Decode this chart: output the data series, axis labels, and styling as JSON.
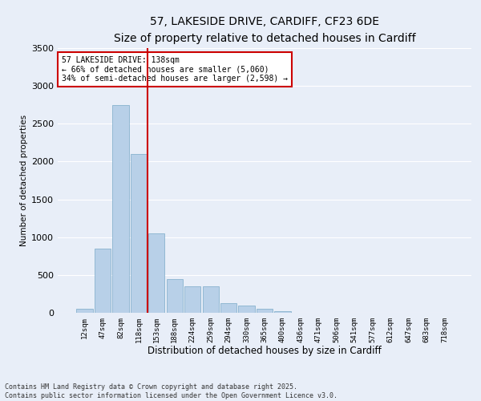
{
  "title_line1": "57, LAKESIDE DRIVE, CARDIFF, CF23 6DE",
  "title_line2": "Size of property relative to detached houses in Cardiff",
  "xlabel": "Distribution of detached houses by size in Cardiff",
  "ylabel": "Number of detached properties",
  "categories": [
    "12sqm",
    "47sqm",
    "82sqm",
    "118sqm",
    "153sqm",
    "188sqm",
    "224sqm",
    "259sqm",
    "294sqm",
    "330sqm",
    "365sqm",
    "400sqm",
    "436sqm",
    "471sqm",
    "506sqm",
    "541sqm",
    "577sqm",
    "612sqm",
    "647sqm",
    "683sqm",
    "718sqm"
  ],
  "values": [
    50,
    850,
    2750,
    2100,
    1050,
    450,
    350,
    350,
    130,
    100,
    50,
    20,
    5,
    2,
    0,
    0,
    0,
    0,
    0,
    0,
    0
  ],
  "bar_color": "#b8d0e8",
  "bar_edge_color": "#7aaac8",
  "vline_color": "#cc0000",
  "vline_pos": 3.5,
  "annotation_text": "57 LAKESIDE DRIVE: 138sqm\n← 66% of detached houses are smaller (5,060)\n34% of semi-detached houses are larger (2,598) →",
  "annotation_box_color": "#ffffff",
  "annotation_box_edge": "#cc0000",
  "ylim": [
    0,
    3500
  ],
  "yticks": [
    0,
    500,
    1000,
    1500,
    2000,
    2500,
    3000,
    3500
  ],
  "footer_line1": "Contains HM Land Registry data © Crown copyright and database right 2025.",
  "footer_line2": "Contains public sector information licensed under the Open Government Licence v3.0.",
  "bg_color": "#e8eef8",
  "grid_color": "#ffffff",
  "title1_fontsize": 10,
  "title2_fontsize": 9
}
